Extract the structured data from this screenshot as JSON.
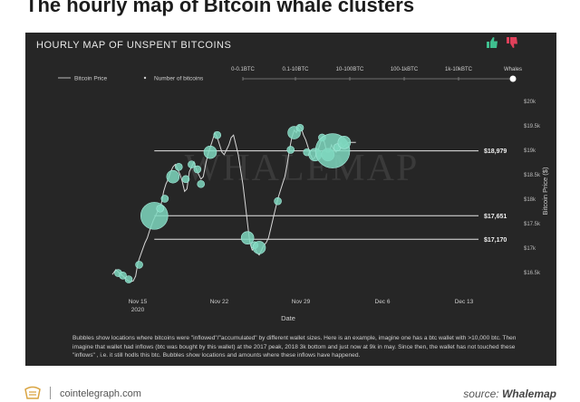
{
  "headline": "The hourly map of Bitcoin whale clusters",
  "panel": {
    "title": "HOURLY MAP OF UNSPENT BITCOINS",
    "caption": "Bubbles show locations where bitcoins were \"inflowed\"/\"accumulated\" by different wallet sizes. Here is an example, imagine one has a btc wallet with >10,000 btc. Then imagine that wallet had inflows (btc was bought by this wallet) at the 2017 peak, 2018 3k bottom and just now at 9k in may. Since then, the wallet has not touched these \"inflows\" , i.e. it still hodls this btc. Bubbles show locations and amounts where these inflows have happened."
  },
  "icons": {
    "like": "thumbs-up-icon",
    "dislike": "thumbs-down-icon",
    "like_color": "#3fbf8f",
    "dislike_color": "#e0405a"
  },
  "footer": {
    "site": "cointelegraph.com",
    "source_prefix": "source:",
    "source_name": "Whalemap"
  },
  "chart_data": {
    "type": "scatter",
    "watermark": "WHALEMAP",
    "xlabel": "Date",
    "ylabel": "Bitcoin Price ($)",
    "x_ticks": [
      "Nov 15\n2020",
      "Nov 22",
      "Nov 29",
      "Dec 6",
      "Dec 13"
    ],
    "x_range": [
      "2020-11-15",
      "2020-12-13"
    ],
    "y_ticks": [
      "$16.5k",
      "$17k",
      "$17.5k",
      "$18k",
      "$18.5k",
      "$19k",
      "$19.5k",
      "$20k"
    ],
    "ylim": [
      16250,
      20100
    ],
    "legend": {
      "price_label": "Bitcoin Price",
      "bubble_label": "Number of bitcoins",
      "scale_labels": [
        "0-0.1BTC",
        "0.1-10BTC",
        "10-100BTC",
        "100-1kBTC",
        "1k-10kBTC",
        "Whales"
      ],
      "selected": "Whales"
    },
    "price_levels": [
      {
        "label": "$18,979",
        "value": 18979
      },
      {
        "label": "$17,651",
        "value": 17651
      },
      {
        "label": "$17,170",
        "value": 17170
      }
    ],
    "price_series": [
      [
        0,
        16450
      ],
      [
        0.3,
        16550
      ],
      [
        0.6,
        16480
      ],
      [
        0.9,
        16420
      ],
      [
        1.2,
        16350
      ],
      [
        1.5,
        16300
      ],
      [
        1.8,
        16320
      ],
      [
        2.0,
        16420
      ],
      [
        2.2,
        16700
      ],
      [
        2.5,
        16900
      ],
      [
        2.8,
        17100
      ],
      [
        3.0,
        17200
      ],
      [
        3.2,
        17350
      ],
      [
        3.5,
        17550
      ],
      [
        3.8,
        17700
      ],
      [
        4.0,
        17800
      ],
      [
        4.2,
        17900
      ],
      [
        4.4,
        18150
      ],
      [
        4.6,
        18300
      ],
      [
        4.8,
        18400
      ],
      [
        5.0,
        18550
      ],
      [
        5.2,
        18650
      ],
      [
        5.4,
        18700
      ],
      [
        5.6,
        18600
      ],
      [
        5.8,
        18500
      ],
      [
        6.0,
        18350
      ],
      [
        6.2,
        18150
      ],
      [
        6.4,
        18200
      ],
      [
        6.6,
        18550
      ],
      [
        6.8,
        18650
      ],
      [
        7.0,
        18750
      ],
      [
        7.2,
        18600
      ],
      [
        7.4,
        18500
      ],
      [
        7.6,
        18400
      ],
      [
        7.8,
        18450
      ],
      [
        8.0,
        18700
      ],
      [
        8.2,
        18900
      ],
      [
        8.4,
        19050
      ],
      [
        8.6,
        19200
      ],
      [
        8.8,
        19350
      ],
      [
        9.0,
        19250
      ],
      [
        9.2,
        19100
      ],
      [
        9.4,
        18950
      ],
      [
        9.6,
        18900
      ],
      [
        9.8,
        19000
      ],
      [
        10.0,
        19100
      ],
      [
        10.2,
        19250
      ],
      [
        10.4,
        19300
      ],
      [
        10.6,
        19100
      ],
      [
        10.8,
        18900
      ],
      [
        11.0,
        18600
      ],
      [
        11.2,
        18300
      ],
      [
        11.4,
        17900
      ],
      [
        11.6,
        17500
      ],
      [
        11.8,
        17100
      ],
      [
        12.0,
        16950
      ],
      [
        12.2,
        17000
      ],
      [
        12.4,
        16900
      ],
      [
        12.6,
        16850
      ],
      [
        12.8,
        16950
      ],
      [
        13.0,
        17050
      ],
      [
        13.2,
        17100
      ],
      [
        13.4,
        17200
      ],
      [
        13.6,
        17400
      ],
      [
        13.8,
        17600
      ],
      [
        14.0,
        17800
      ],
      [
        14.2,
        18000
      ],
      [
        14.4,
        18150
      ],
      [
        14.6,
        18300
      ],
      [
        14.8,
        18450
      ],
      [
        15.0,
        18700
      ],
      [
        15.2,
        19000
      ],
      [
        15.4,
        19250
      ],
      [
        15.6,
        19400
      ],
      [
        15.8,
        19350
      ],
      [
        16.0,
        19500
      ],
      [
        16.2,
        19450
      ],
      [
        16.4,
        19300
      ],
      [
        16.6,
        19200
      ],
      [
        16.8,
        19050
      ],
      [
        17.0,
        18900
      ],
      [
        17.2,
        18800
      ],
      [
        17.4,
        18850
      ],
      [
        17.6,
        18950
      ],
      [
        17.8,
        19100
      ],
      [
        18.0,
        19250
      ],
      [
        18.2,
        19150
      ],
      [
        18.4,
        18950
      ],
      [
        18.6,
        18950
      ],
      [
        18.8,
        19100
      ],
      [
        19.0,
        19000
      ],
      [
        19.2,
        18950
      ],
      [
        19.4,
        19050
      ],
      [
        19.6,
        19150
      ],
      [
        19.8,
        19050
      ],
      [
        20.0,
        19100
      ],
      [
        20.3,
        19150
      ],
      [
        20.6,
        19150
      ],
      [
        20.9,
        19150
      ]
    ],
    "bubbles": [
      {
        "x": 0.5,
        "y": 16480,
        "size": 1
      },
      {
        "x": 0.9,
        "y": 16430,
        "size": 1
      },
      {
        "x": 1.4,
        "y": 16350,
        "size": 1
      },
      {
        "x": 2.3,
        "y": 16650,
        "size": 1
      },
      {
        "x": 3.6,
        "y": 17650,
        "size": 3
      },
      {
        "x": 4.1,
        "y": 17800,
        "size": 1
      },
      {
        "x": 4.5,
        "y": 18000,
        "size": 1
      },
      {
        "x": 5.2,
        "y": 18450,
        "size": 2
      },
      {
        "x": 5.7,
        "y": 18650,
        "size": 1
      },
      {
        "x": 6.3,
        "y": 18400,
        "size": 1
      },
      {
        "x": 6.8,
        "y": 18700,
        "size": 1
      },
      {
        "x": 7.3,
        "y": 18600,
        "size": 1
      },
      {
        "x": 7.6,
        "y": 18300,
        "size": 1
      },
      {
        "x": 8.4,
        "y": 18950,
        "size": 2
      },
      {
        "x": 9.0,
        "y": 19300,
        "size": 1
      },
      {
        "x": 11.6,
        "y": 17200,
        "size": 2
      },
      {
        "x": 12.2,
        "y": 17050,
        "size": 1
      },
      {
        "x": 12.6,
        "y": 17000,
        "size": 2
      },
      {
        "x": 14.2,
        "y": 17950,
        "size": 1
      },
      {
        "x": 15.3,
        "y": 19000,
        "size": 1
      },
      {
        "x": 15.6,
        "y": 19350,
        "size": 2
      },
      {
        "x": 16.1,
        "y": 19450,
        "size": 1
      },
      {
        "x": 16.7,
        "y": 18950,
        "size": 1
      },
      {
        "x": 17.4,
        "y": 18900,
        "size": 2
      },
      {
        "x": 18.0,
        "y": 19250,
        "size": 1
      },
      {
        "x": 18.5,
        "y": 18900,
        "size": 2
      },
      {
        "x": 18.9,
        "y": 18979,
        "size": 4
      },
      {
        "x": 19.3,
        "y": 19050,
        "size": 1
      },
      {
        "x": 19.9,
        "y": 19150,
        "size": 2
      }
    ]
  }
}
